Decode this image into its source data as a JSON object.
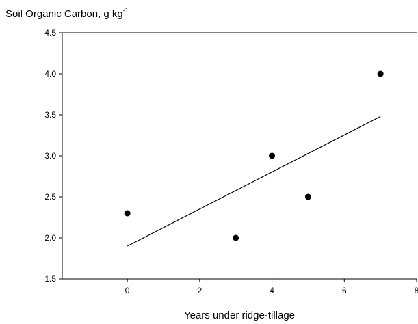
{
  "chart_data": {
    "type": "scatter",
    "title": "",
    "ylabel": "Soil Organic Carbon, g kg",
    "ylabel_superscript": "-1",
    "xlabel": "Years under ridge-tillage",
    "xlim": [
      -1.8,
      8
    ],
    "ylim": [
      1.5,
      4.5
    ],
    "xticks": [
      "0",
      "2",
      "4",
      "6",
      "8"
    ],
    "yticks": [
      "1.5",
      "2.0",
      "2.5",
      "3.0",
      "3.5",
      "4.0",
      "4.5"
    ],
    "grid": false,
    "points": [
      {
        "x": 0,
        "y": 2.3
      },
      {
        "x": 3,
        "y": 2.0
      },
      {
        "x": 4,
        "y": 3.0
      },
      {
        "x": 5,
        "y": 2.5
      },
      {
        "x": 7,
        "y": 4.0
      }
    ],
    "regression_line": {
      "x": [
        0,
        7
      ],
      "y": [
        1.9,
        3.48
      ]
    },
    "colors": {
      "marker": "#000000",
      "line": "#000000",
      "axis": "#000000"
    }
  }
}
